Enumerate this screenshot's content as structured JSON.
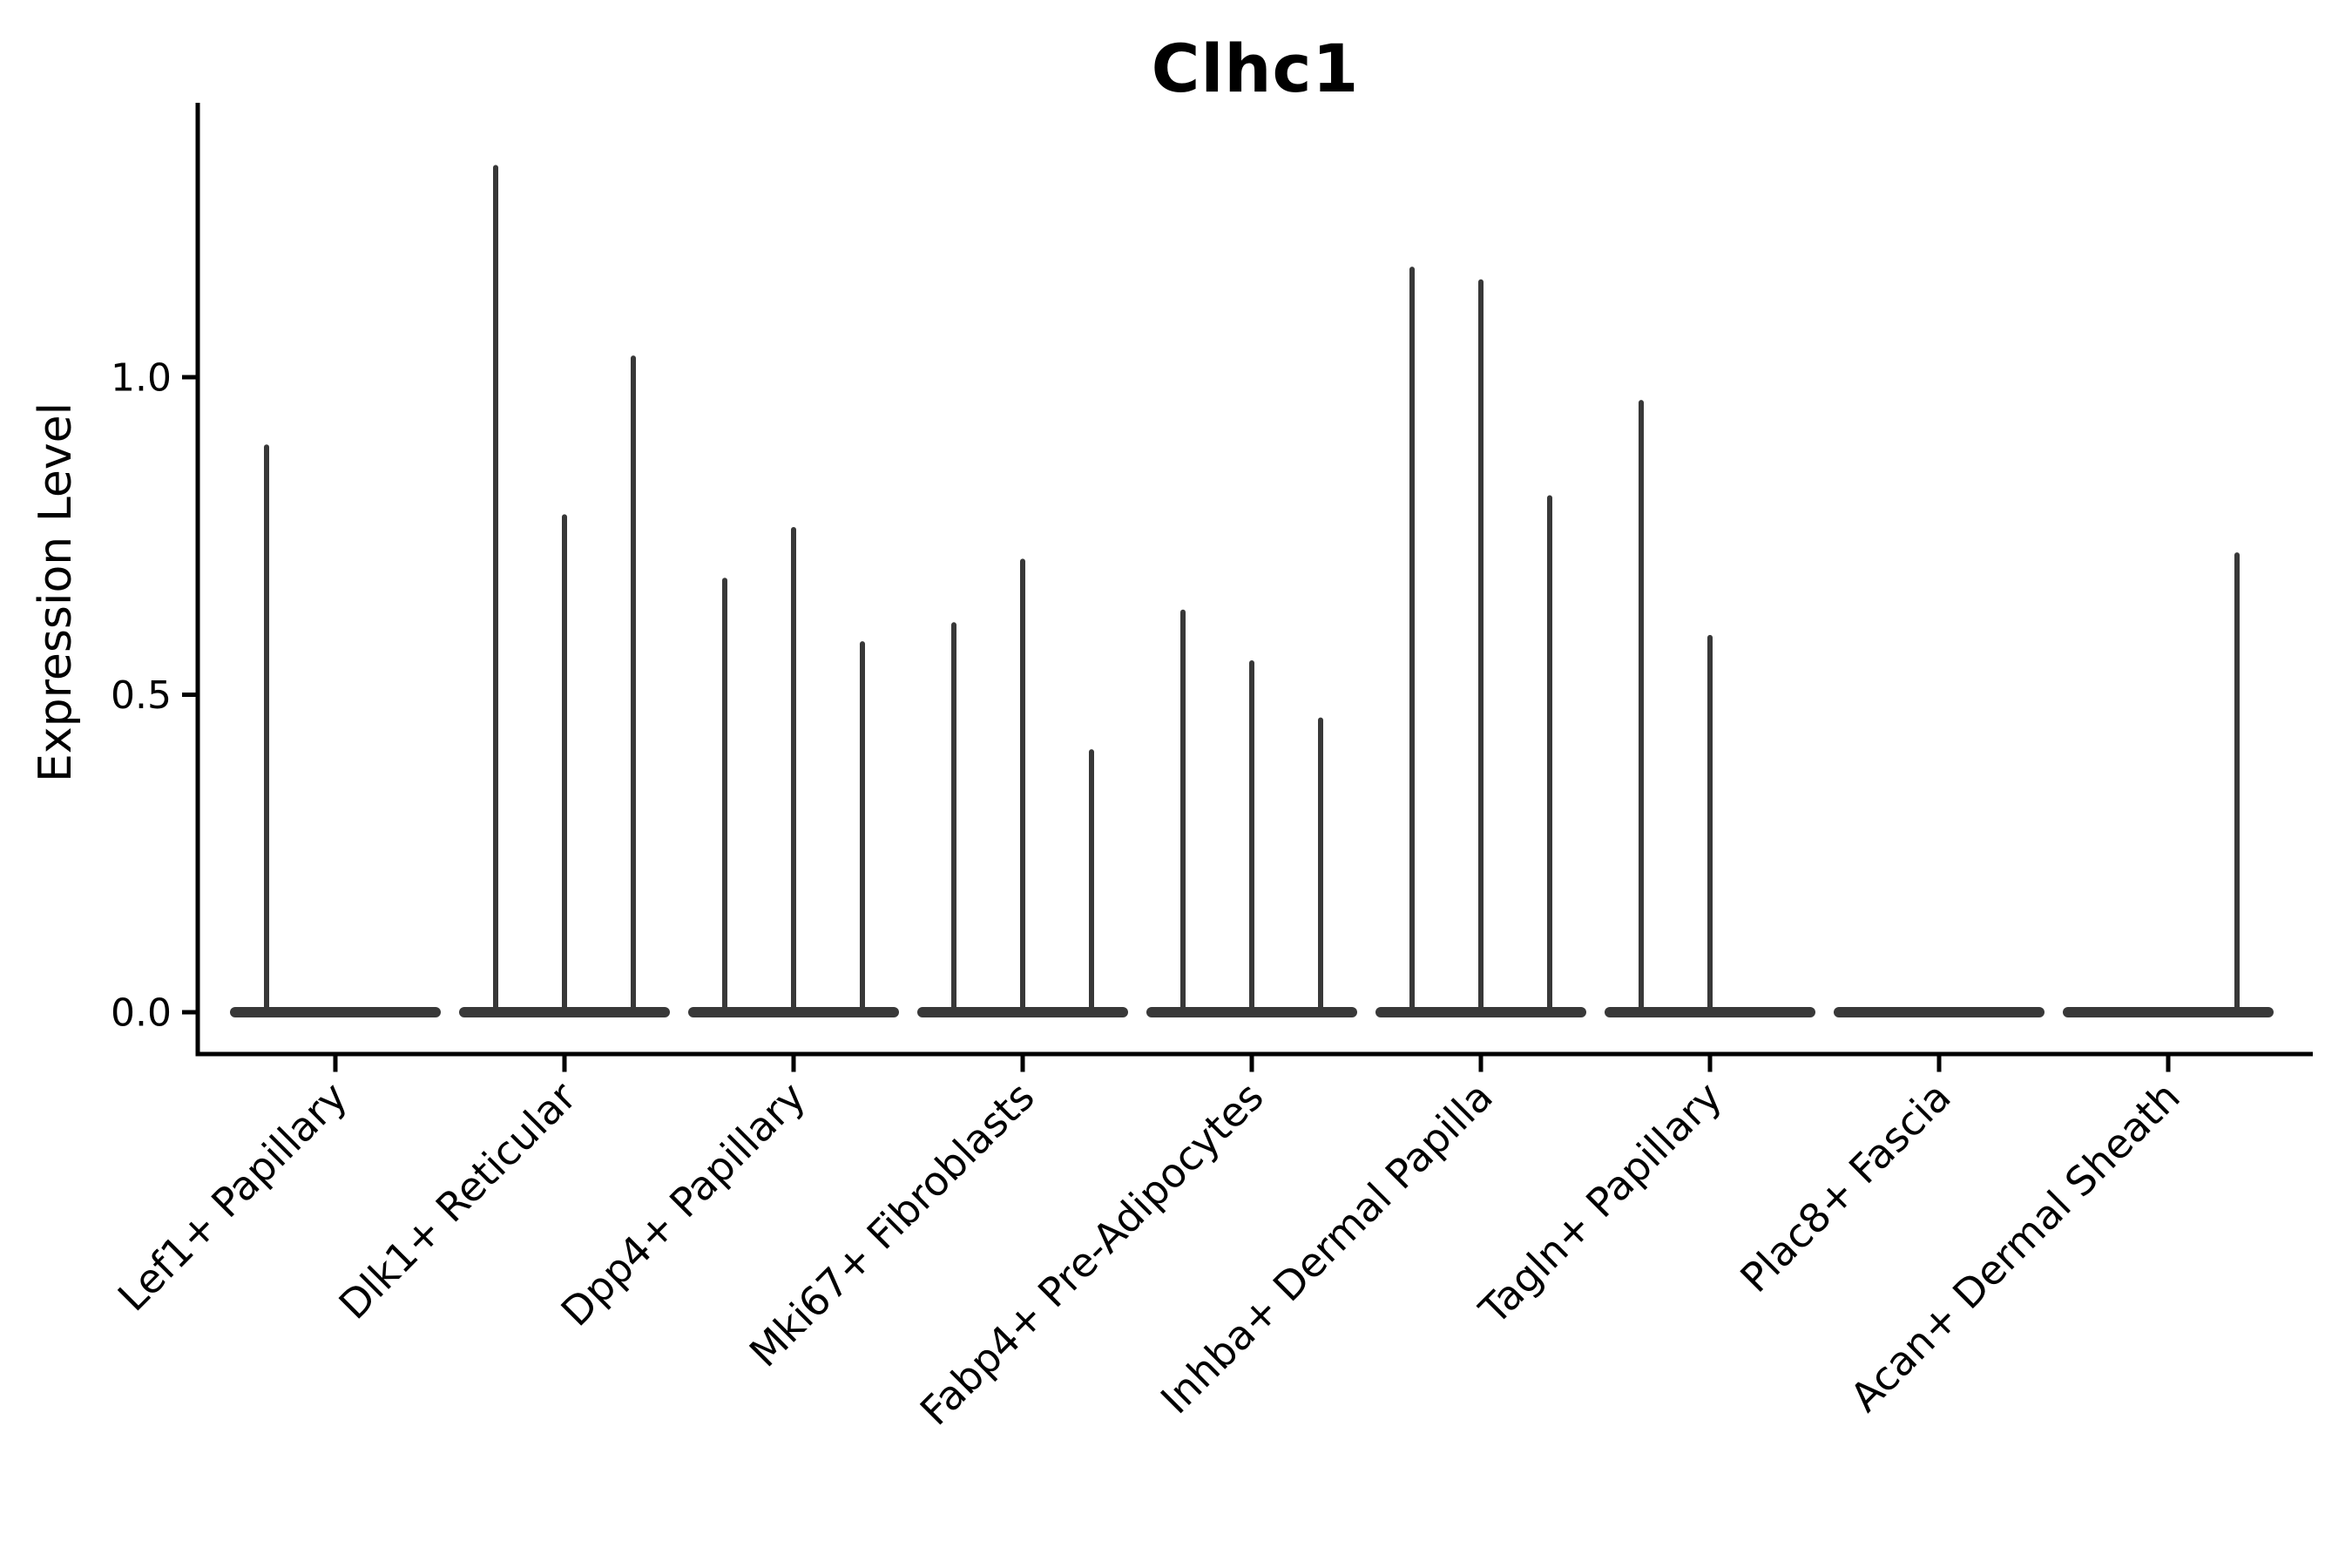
{
  "chart_data": {
    "type": "violin",
    "title": "Clhc1",
    "ylabel": "Expression Level",
    "xlabel": "",
    "yticks": [
      "0.0",
      "0.5",
      "1.0"
    ],
    "ytick_values": [
      0.0,
      0.5,
      1.0
    ],
    "ylim": [
      -0.07,
      1.43
    ],
    "grid": false,
    "legend": "none",
    "background_color": "#ffffff",
    "axis_color": "#000000",
    "violin_color": "#383838",
    "violins_per_category": 3,
    "categories": [
      "Lef1+ Papillary",
      "Dlk1+ Reticular",
      "Dpp4+ Papillary",
      "Mki67+ Fibroblasts",
      "Fabp4+ Pre-Adipocytes",
      "Inhba+ Dermal Papilla",
      "Tagln+ Papillary",
      "Plac8+ Fascia",
      "Acan+ Dermal Sheath"
    ],
    "series": [
      {
        "category": "Lef1+ Papillary",
        "violin_max_values": [
          0.89,
          0,
          0
        ]
      },
      {
        "category": "Dlk1+ Reticular",
        "violin_max_values": [
          1.33,
          0.78,
          1.03
        ]
      },
      {
        "category": "Dpp4+ Papillary",
        "violin_max_values": [
          0.68,
          0.76,
          0.58
        ]
      },
      {
        "category": "Mki67+ Fibroblasts",
        "violin_max_values": [
          0.61,
          0.71,
          0.41
        ]
      },
      {
        "category": "Fabp4+ Pre-Adipocytes",
        "violin_max_values": [
          0.63,
          0.55,
          0.46
        ]
      },
      {
        "category": "Inhba+ Dermal Papilla",
        "violin_max_values": [
          1.17,
          1.15,
          0.81
        ]
      },
      {
        "category": "Tagln+ Papillary",
        "violin_max_values": [
          0.96,
          0.59,
          0
        ]
      },
      {
        "category": "Plac8+ Fascia",
        "violin_max_values": [
          0,
          0,
          0
        ]
      },
      {
        "category": "Acan+ Dermal Sheath",
        "violin_max_values": [
          0,
          0,
          0.72
        ]
      }
    ]
  }
}
